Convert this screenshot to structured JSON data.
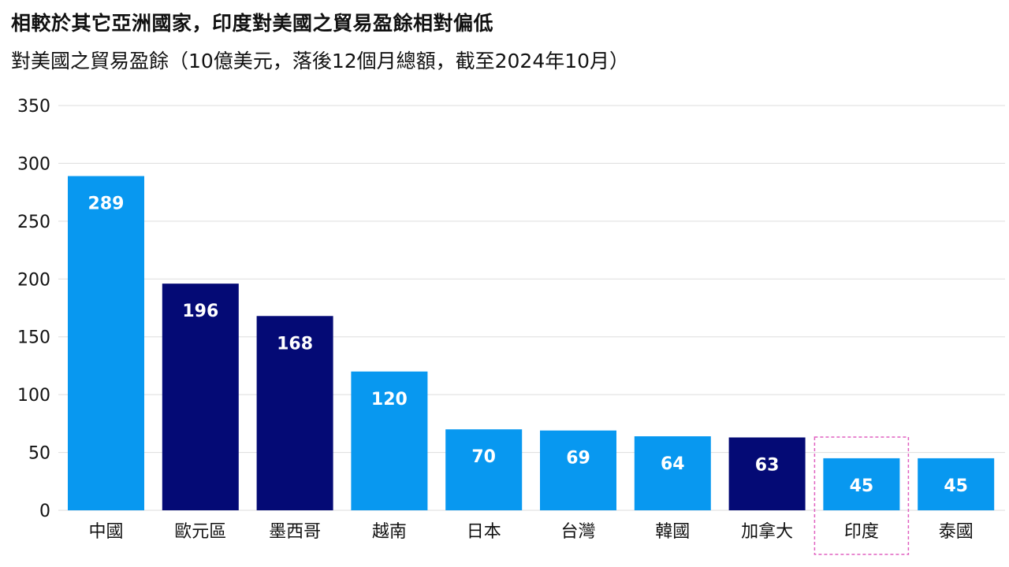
{
  "header": {
    "title": "相較於其它亞洲國家，印度對美國之貿易盈餘相對偏低",
    "subtitle": "對美國之貿易盈餘（10億美元，落後12個月總額，截至2024年10月）"
  },
  "colors": {
    "light_blue": "#0898f0",
    "dark_navy": "#040a75",
    "highlight_border": "#e060c0",
    "grid": "#dddddd"
  },
  "chart_data": {
    "type": "bar",
    "title": "相較於其它亞洲國家，印度對美國之貿易盈餘相對偏低",
    "subtitle": "對美國之貿易盈餘（10億美元，落後12個月總額，截至2024年10月）",
    "xlabel": "",
    "ylabel": "",
    "ylim": [
      0,
      350
    ],
    "yticks": [
      0,
      50,
      100,
      150,
      200,
      250,
      300,
      350
    ],
    "grid": true,
    "categories": [
      "中國",
      "歐元區",
      "墨西哥",
      "越南",
      "日本",
      "台灣",
      "韓國",
      "加拿大",
      "印度",
      "泰國"
    ],
    "values": [
      289,
      196,
      168,
      120,
      70,
      69,
      64,
      63,
      45,
      45
    ],
    "bar_colors": [
      "light_blue",
      "dark_navy",
      "dark_navy",
      "light_blue",
      "light_blue",
      "light_blue",
      "light_blue",
      "dark_navy",
      "light_blue",
      "light_blue"
    ],
    "highlighted_category": "印度"
  }
}
